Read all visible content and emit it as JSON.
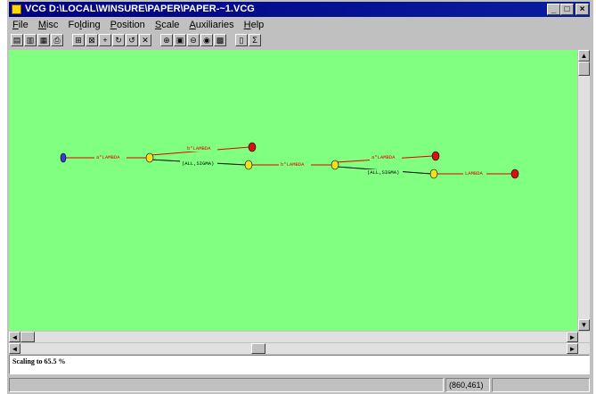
{
  "window": {
    "title": "VCG D:\\LOCAL\\WINSURE\\PAPER\\PAPER-~1.VCG"
  },
  "menu": [
    "File",
    "Misc",
    "Folding",
    "Position",
    "Scale",
    "Auxiliaries",
    "Help"
  ],
  "menu_accel": [
    "F",
    "M",
    "l",
    "P",
    "S",
    "A",
    "H"
  ],
  "graph": {
    "edge_labels": [
      "a*LAMBDA",
      "b*LAMBDA",
      "(ALL,SIGMA)",
      "b*LAMBDA",
      "a*LAMBDA",
      "(ALL,SIGMA)",
      "LAMBDA"
    ],
    "node_colors": {
      "start": "#3a3ad8",
      "middle": "#f0e020",
      "final": "#d81010"
    },
    "edge_colors": {
      "lambda": "#e00000",
      "sigma": "#000000"
    }
  },
  "status": {
    "message": "Scaling to 65.5 %",
    "coords": "(860,461)"
  }
}
